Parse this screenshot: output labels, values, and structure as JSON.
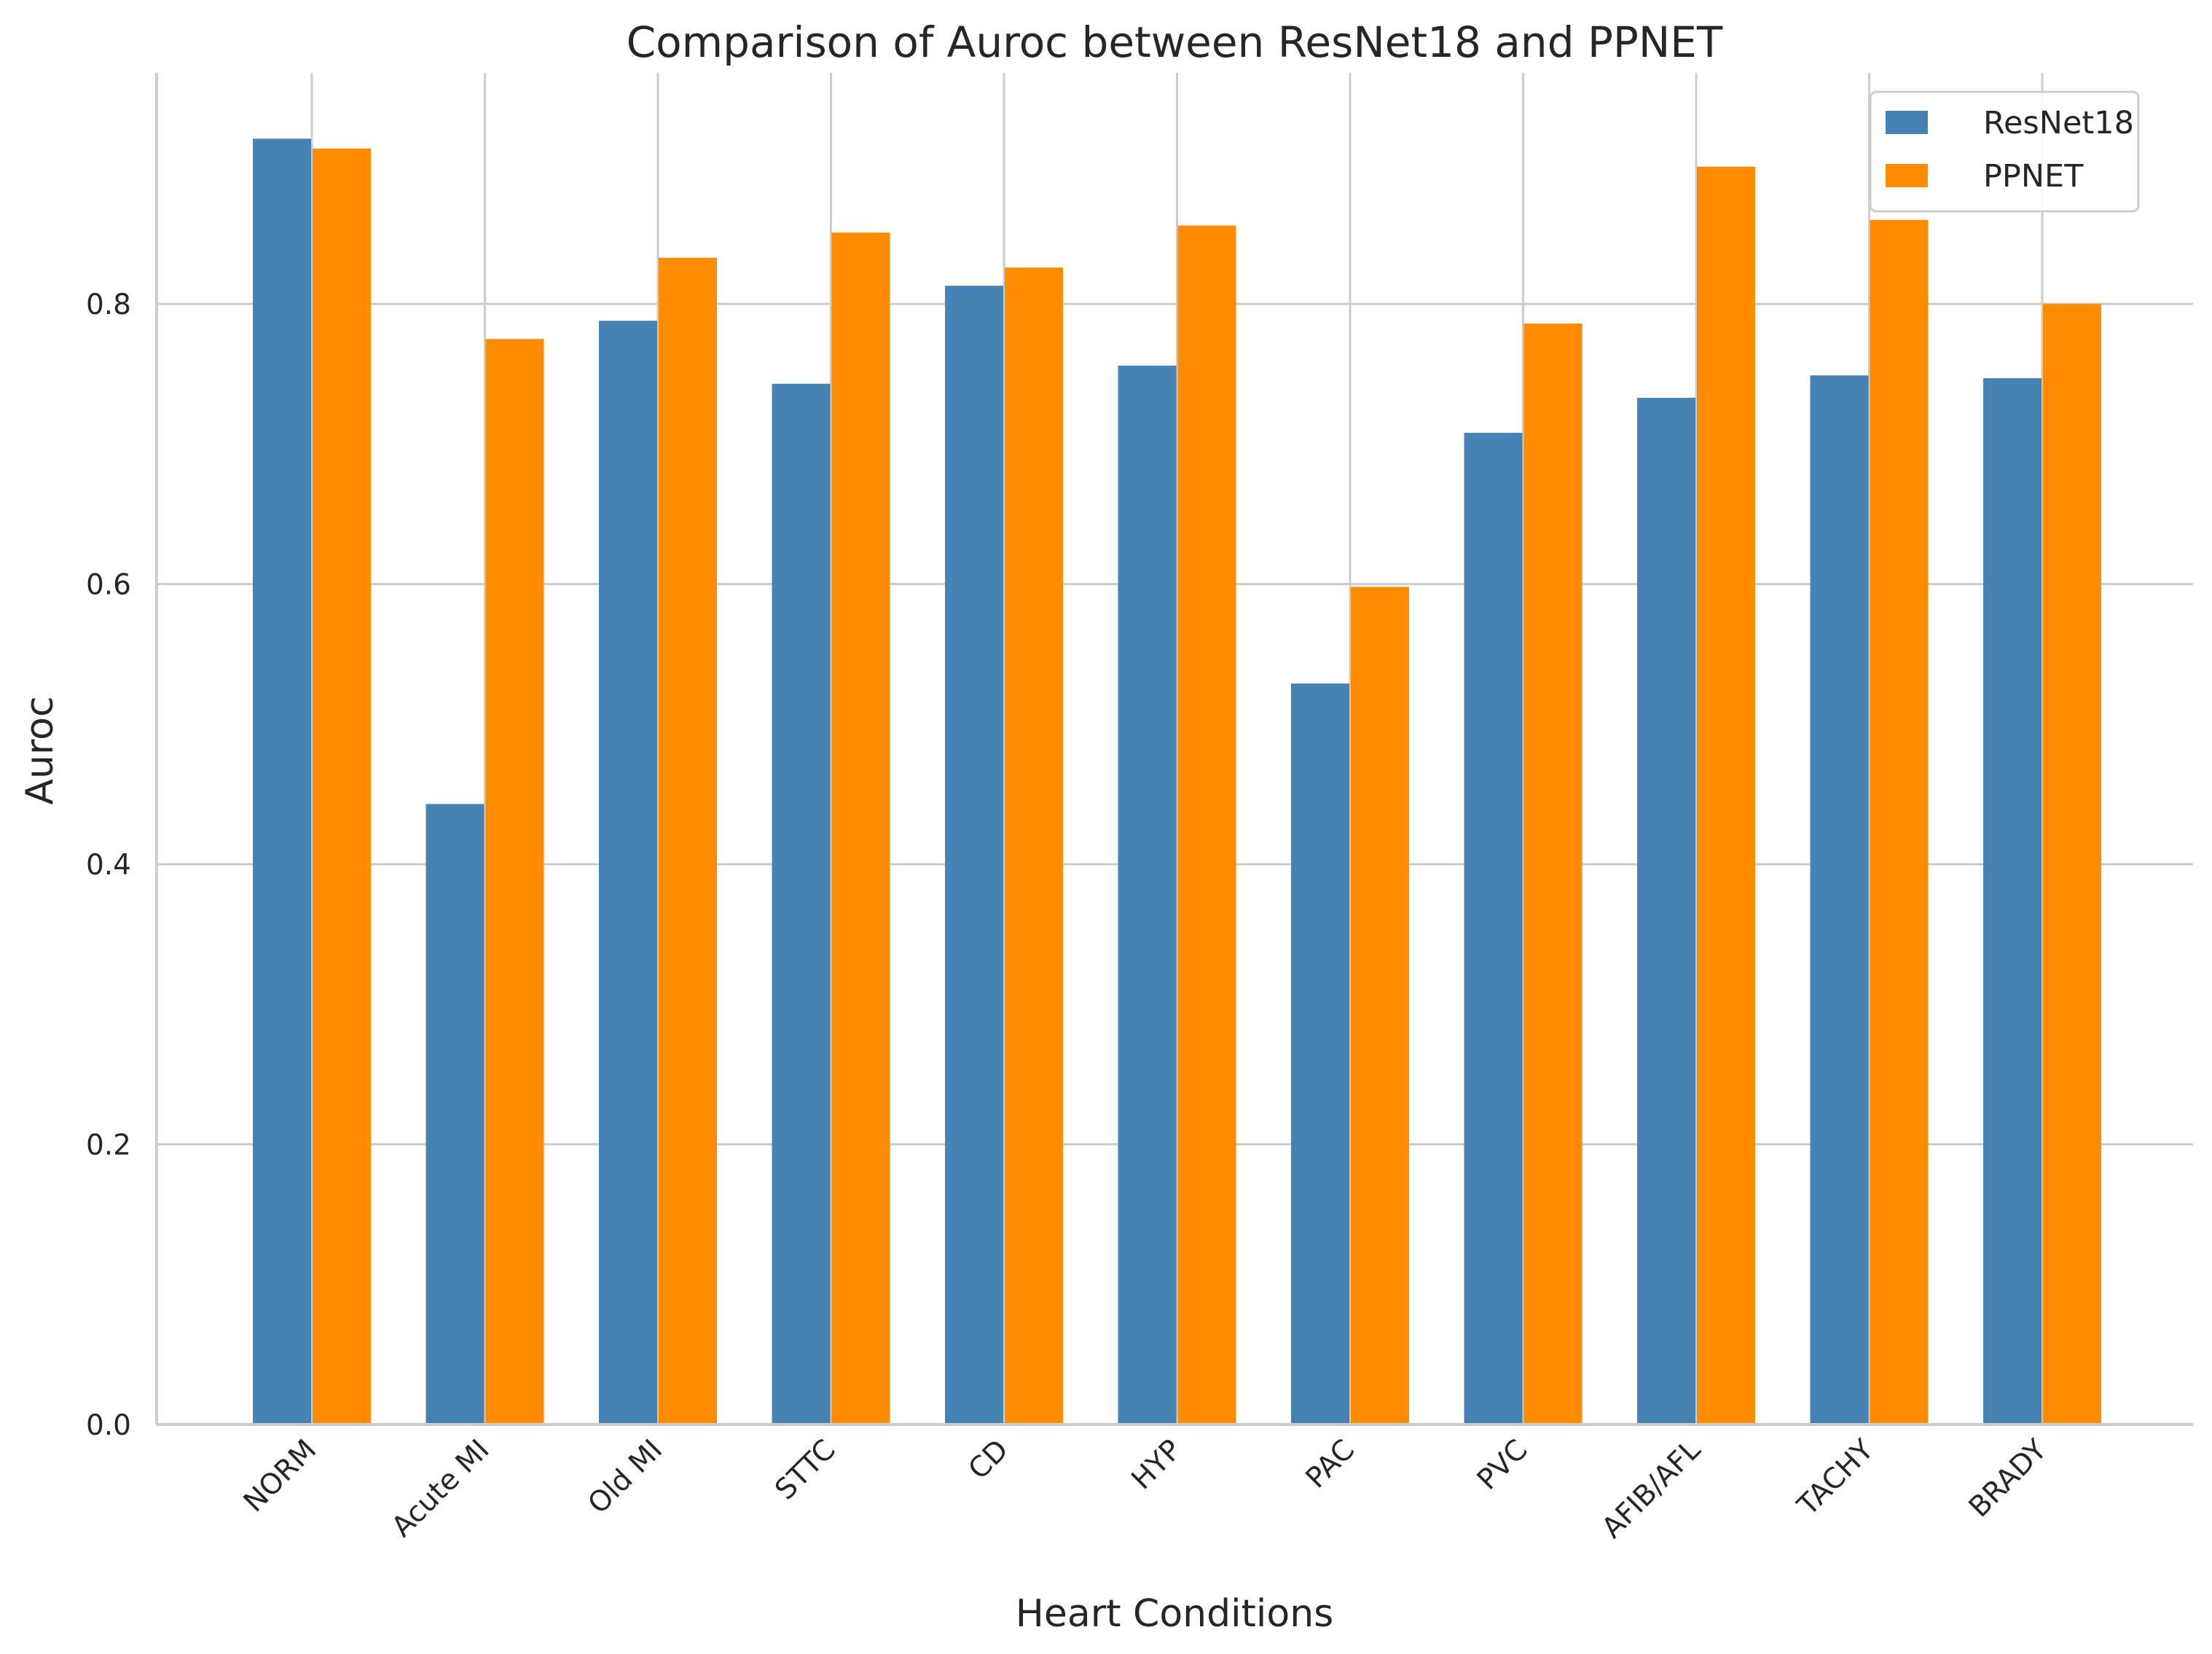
{
  "chart_data": {
    "type": "bar",
    "title": "Comparison of Auroc between ResNet18 and PPNET",
    "xlabel": "Heart Conditions",
    "ylabel": "Auroc",
    "ylim": [
      0,
      0.965
    ],
    "yticks": [
      0.0,
      0.2,
      0.4,
      0.6,
      0.8
    ],
    "ytick_labels": [
      "0.0",
      "0.2",
      "0.4",
      "0.6",
      "0.8"
    ],
    "grid": true,
    "legend": "top-right",
    "categories": [
      "NORM",
      "Acute MI",
      "Old MI",
      "STTC",
      "CD",
      "HYP",
      "PAC",
      "PVC",
      "AFIB/AFL",
      "TACHY",
      "BRADY"
    ],
    "series": [
      {
        "name": "ResNet18",
        "color": "#4682b4",
        "values": [
          0.918,
          0.443,
          0.788,
          0.743,
          0.813,
          0.756,
          0.529,
          0.708,
          0.733,
          0.749,
          0.747
        ]
      },
      {
        "name": "PPNET",
        "color": "#ff8c00",
        "values": [
          0.911,
          0.775,
          0.833,
          0.851,
          0.826,
          0.856,
          0.598,
          0.786,
          0.898,
          0.86,
          0.8
        ]
      }
    ]
  }
}
